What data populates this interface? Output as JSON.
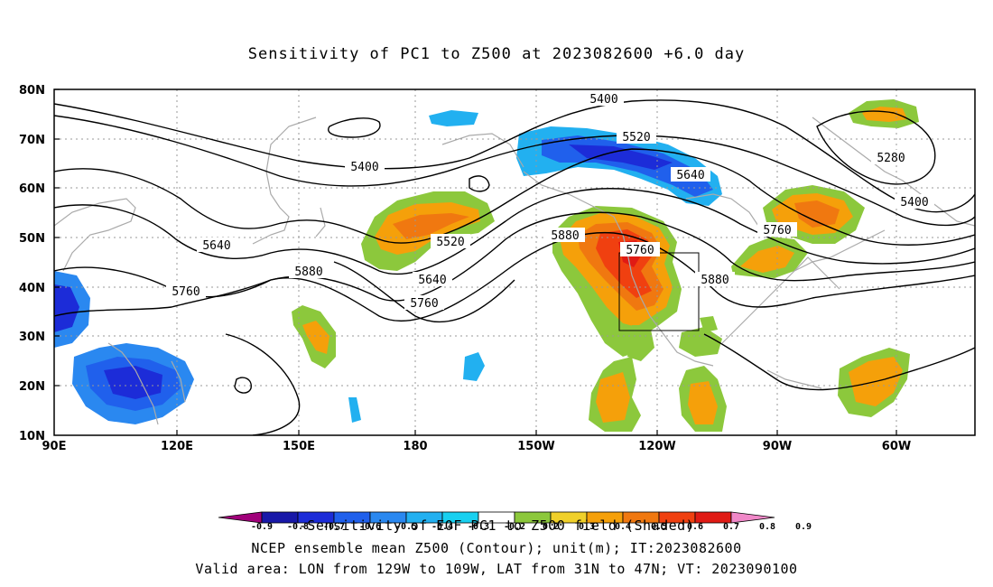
{
  "title": "Sensitivity of PC1 to Z500 at 2023082600 +6.0 day",
  "lat_labels": [
    "80N",
    "70N",
    "60N",
    "50N",
    "40N",
    "30N",
    "20N",
    "10N"
  ],
  "lon_labels": [
    "90E",
    "120E",
    "150E",
    "180",
    "150W",
    "120W",
    "90W",
    "60W"
  ],
  "contour_labels": [
    "5400",
    "5520",
    "5640",
    "5400",
    "5280",
    "5400",
    "5640",
    "5760",
    "5880",
    "5520",
    "5640",
    "5760",
    "5880",
    "5760",
    "5760",
    "5880"
  ],
  "colorbar_ticks": [
    "-0.9",
    "-0.8",
    "-0.7",
    "-0.6",
    "-0.5",
    "-0.4",
    "-0.3",
    "-0.2",
    "0.2",
    "0.3",
    "0.4",
    "0.5",
    "0.6",
    "0.7",
    "0.8",
    "0.9"
  ],
  "colorbar_colors": [
    "#a0007a",
    "#1818a8",
    "#1c2cd8",
    "#2060ec",
    "#2a88f0",
    "#22b0f0",
    "#18d0f0",
    "#ffffff",
    "#8cc83c",
    "#f0d02a",
    "#f5a00a",
    "#f07810",
    "#f04010",
    "#e01a14",
    "#f088c8"
  ],
  "footer": {
    "line1": "-Sensitivity of EOF PC1 to Z500 field (Shaded)",
    "line2": "NCEP ensemble mean Z500 (Contour); unit(m); IT:2023082600",
    "line3": "Valid area: LON from 129W to 109W, LAT from 31N to 47N; VT: 2023090100"
  }
}
